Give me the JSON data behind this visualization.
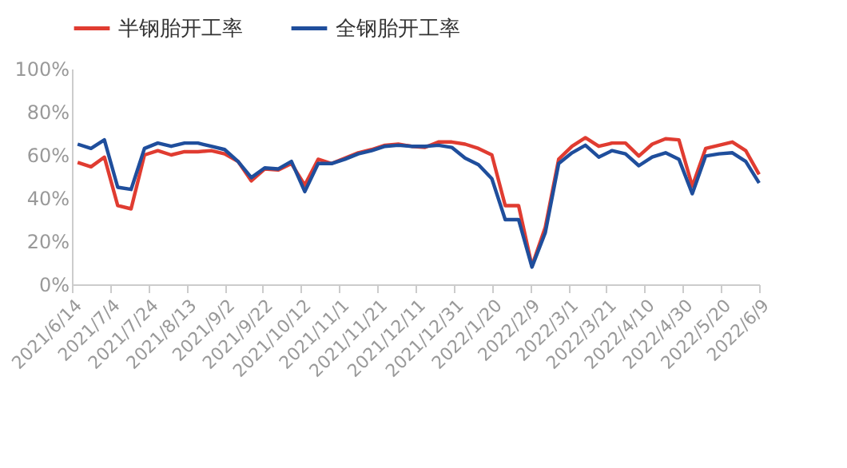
{
  "chart_data": {
    "type": "line",
    "x": [
      "2021-06-17",
      "2021-06-24",
      "2021-07-01",
      "2021-07-08",
      "2021-07-15",
      "2021-07-22",
      "2021-07-29",
      "2021-08-05",
      "2021-08-12",
      "2021-08-19",
      "2021-08-26",
      "2021-09-02",
      "2021-09-09",
      "2021-09-16",
      "2021-09-23",
      "2021-09-30",
      "2021-10-07",
      "2021-10-14",
      "2021-10-21",
      "2021-10-28",
      "2021-11-04",
      "2021-11-11",
      "2021-11-18",
      "2021-11-25",
      "2021-12-02",
      "2021-12-09",
      "2021-12-16",
      "2021-12-23",
      "2021-12-30",
      "2022-01-06",
      "2022-01-13",
      "2022-01-20",
      "2022-01-27",
      "2022-02-03",
      "2022-02-10",
      "2022-02-17",
      "2022-02-24",
      "2022-03-03",
      "2022-03-10",
      "2022-03-17",
      "2022-03-24",
      "2022-03-31",
      "2022-04-07",
      "2022-04-14",
      "2022-04-21",
      "2022-04-28",
      "2022-05-05",
      "2022-05-12",
      "2022-05-19",
      "2022-05-26",
      "2022-06-02",
      "2022-06-09"
    ],
    "series": [
      {
        "name": "半钢胎开工率",
        "color": "#e03c31",
        "values": [
          56.5,
          54.5,
          59,
          36.5,
          35,
          60,
          62,
          60,
          61.5,
          61.5,
          62,
          60.5,
          57,
          48,
          53.5,
          53,
          56,
          46,
          58,
          56,
          58.5,
          61,
          62.5,
          64.5,
          65,
          64,
          63.5,
          66,
          66,
          65,
          63,
          60,
          36.5,
          36.5,
          8.5,
          26.5,
          58,
          64,
          68,
          64,
          65.5,
          65.5,
          59.5,
          65,
          67.5,
          67,
          45.5,
          63,
          64.5,
          66,
          62,
          51
        ]
      },
      {
        "name": "全钢胎开工率",
        "color": "#1f4e9c",
        "values": [
          65,
          63,
          67,
          45,
          44,
          63,
          65.5,
          64,
          65.5,
          65.5,
          64,
          62.5,
          57,
          49.5,
          54,
          53.5,
          57,
          43,
          56,
          56,
          58,
          60.5,
          62,
          64,
          64.5,
          64,
          64,
          64.5,
          63.5,
          58.5,
          55.5,
          49,
          30,
          30,
          8,
          24,
          56,
          61,
          64.5,
          59,
          62,
          60.5,
          55,
          59,
          61,
          58,
          42,
          59.5,
          60.5,
          61,
          57,
          47
        ]
      }
    ],
    "xlim": [
      "2021-06-14",
      "2022-06-09"
    ],
    "xticks": [
      {
        "value": "2021-06-14",
        "label": "2021/6/14"
      },
      {
        "value": "2021-07-04",
        "label": "2021/7/4"
      },
      {
        "value": "2021-07-24",
        "label": "2021/7/24"
      },
      {
        "value": "2021-08-13",
        "label": "2021/8/13"
      },
      {
        "value": "2021-09-02",
        "label": "2021/9/2"
      },
      {
        "value": "2021-09-22",
        "label": "2021/9/22"
      },
      {
        "value": "2021-10-12",
        "label": "2021/10/12"
      },
      {
        "value": "2021-11-01",
        "label": "2021/11/1"
      },
      {
        "value": "2021-11-21",
        "label": "2021/11/21"
      },
      {
        "value": "2021-12-11",
        "label": "2021/12/11"
      },
      {
        "value": "2021-12-31",
        "label": "2021/12/31"
      },
      {
        "value": "2022-01-20",
        "label": "2022/1/20"
      },
      {
        "value": "2022-02-09",
        "label": "2022/2/9"
      },
      {
        "value": "2022-03-01",
        "label": "2022/3/1"
      },
      {
        "value": "2022-03-21",
        "label": "2022/3/21"
      },
      {
        "value": "2022-04-10",
        "label": "2022/4/10"
      },
      {
        "value": "2022-04-30",
        "label": "2022/4/30"
      },
      {
        "value": "2022-05-20",
        "label": "2022/5/20"
      },
      {
        "value": "2022-06-09",
        "label": "2022/6/9"
      }
    ],
    "ylim": [
      0,
      100
    ],
    "yticks": [
      {
        "value": 0,
        "label": "0%"
      },
      {
        "value": 20,
        "label": "20%"
      },
      {
        "value": 40,
        "label": "40%"
      },
      {
        "value": 60,
        "label": "60%"
      },
      {
        "value": 80,
        "label": "80%"
      },
      {
        "value": 100,
        "label": "100%"
      }
    ],
    "grid": false,
    "legend": "top",
    "marker": "none",
    "line_style": "solid"
  }
}
